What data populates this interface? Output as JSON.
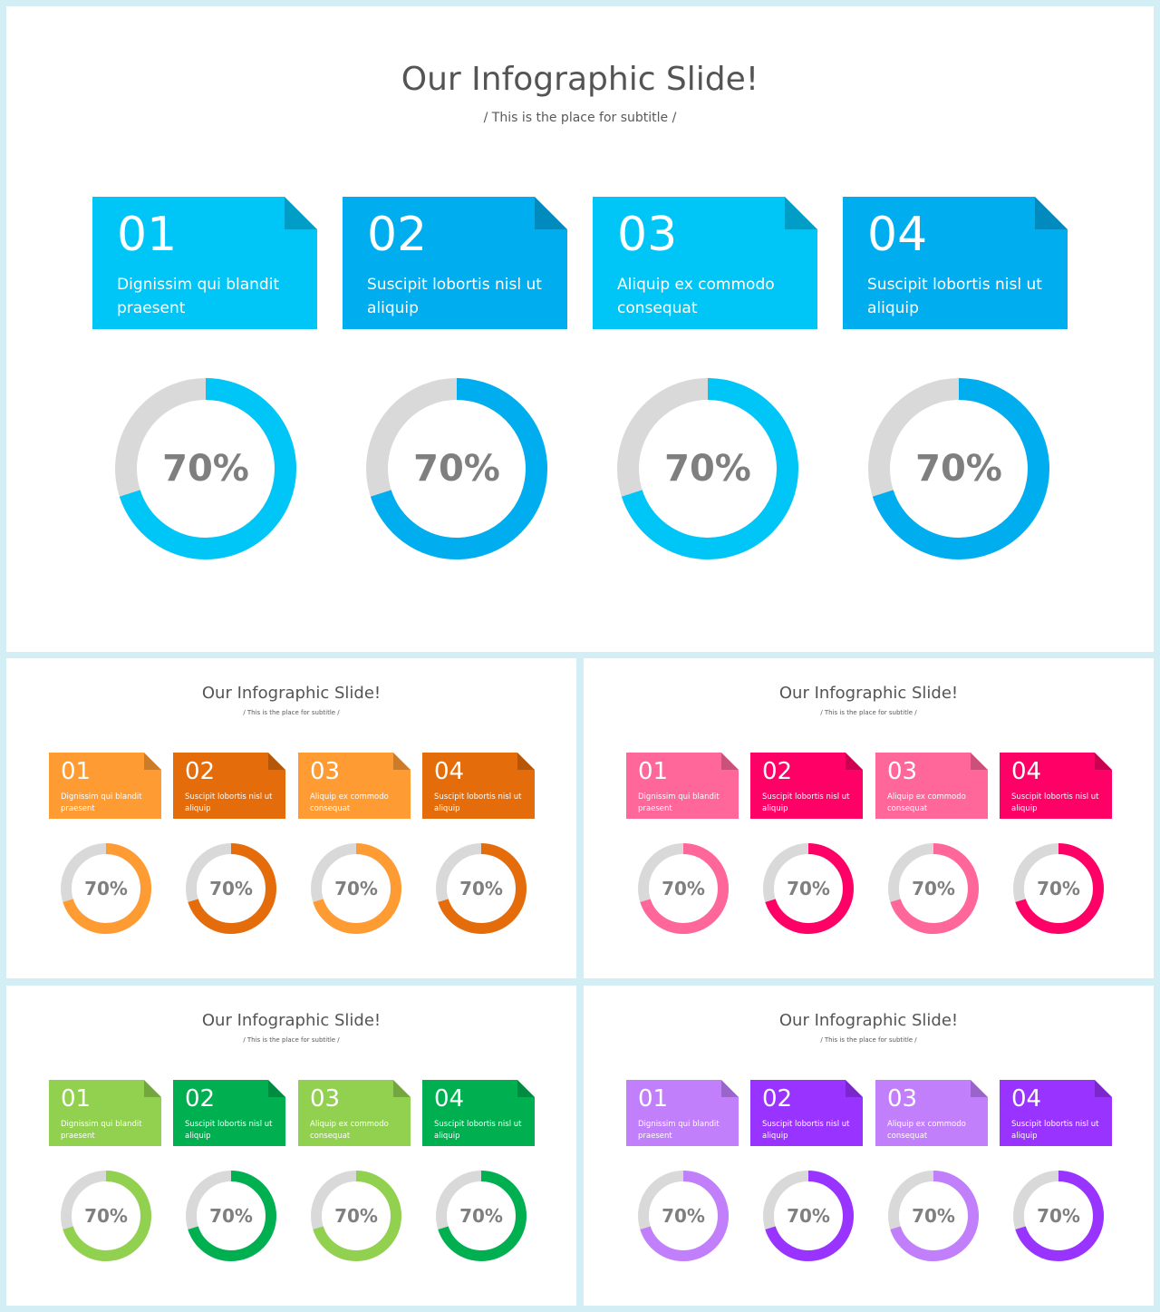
{
  "title": "Our Infographic Slide!",
  "subtitle": "/ This is the place for subtitle /",
  "items": [
    {
      "number": "01",
      "caption": "Dignissim qui blandit praesent",
      "percent_label": "70%",
      "percent": 70
    },
    {
      "number": "02",
      "caption": "Suscipit lobortis nisl ut aliquip",
      "percent_label": "70%",
      "percent": 70
    },
    {
      "number": "03",
      "caption": "Aliquip ex commodo consequat",
      "percent_label": "70%",
      "percent": 70
    },
    {
      "number": "04",
      "caption": "Suscipit lobortis nisl ut aliquip",
      "percent_label": "70%",
      "percent": 70
    }
  ],
  "ring_track_color": "#d9d9d9",
  "percent_text_color": "#7f7f7f",
  "themes": [
    {
      "name": "blue",
      "light": "#00c6f8",
      "dark": "#00adee"
    },
    {
      "name": "orange",
      "light": "#ff9b33",
      "dark": "#e46c0a"
    },
    {
      "name": "pink",
      "light": "#ff6699",
      "dark": "#ff0066"
    },
    {
      "name": "green",
      "light": "#92d050",
      "dark": "#00b050"
    },
    {
      "name": "purple",
      "light": "#c17ffc",
      "dark": "#9933ff"
    }
  ]
}
